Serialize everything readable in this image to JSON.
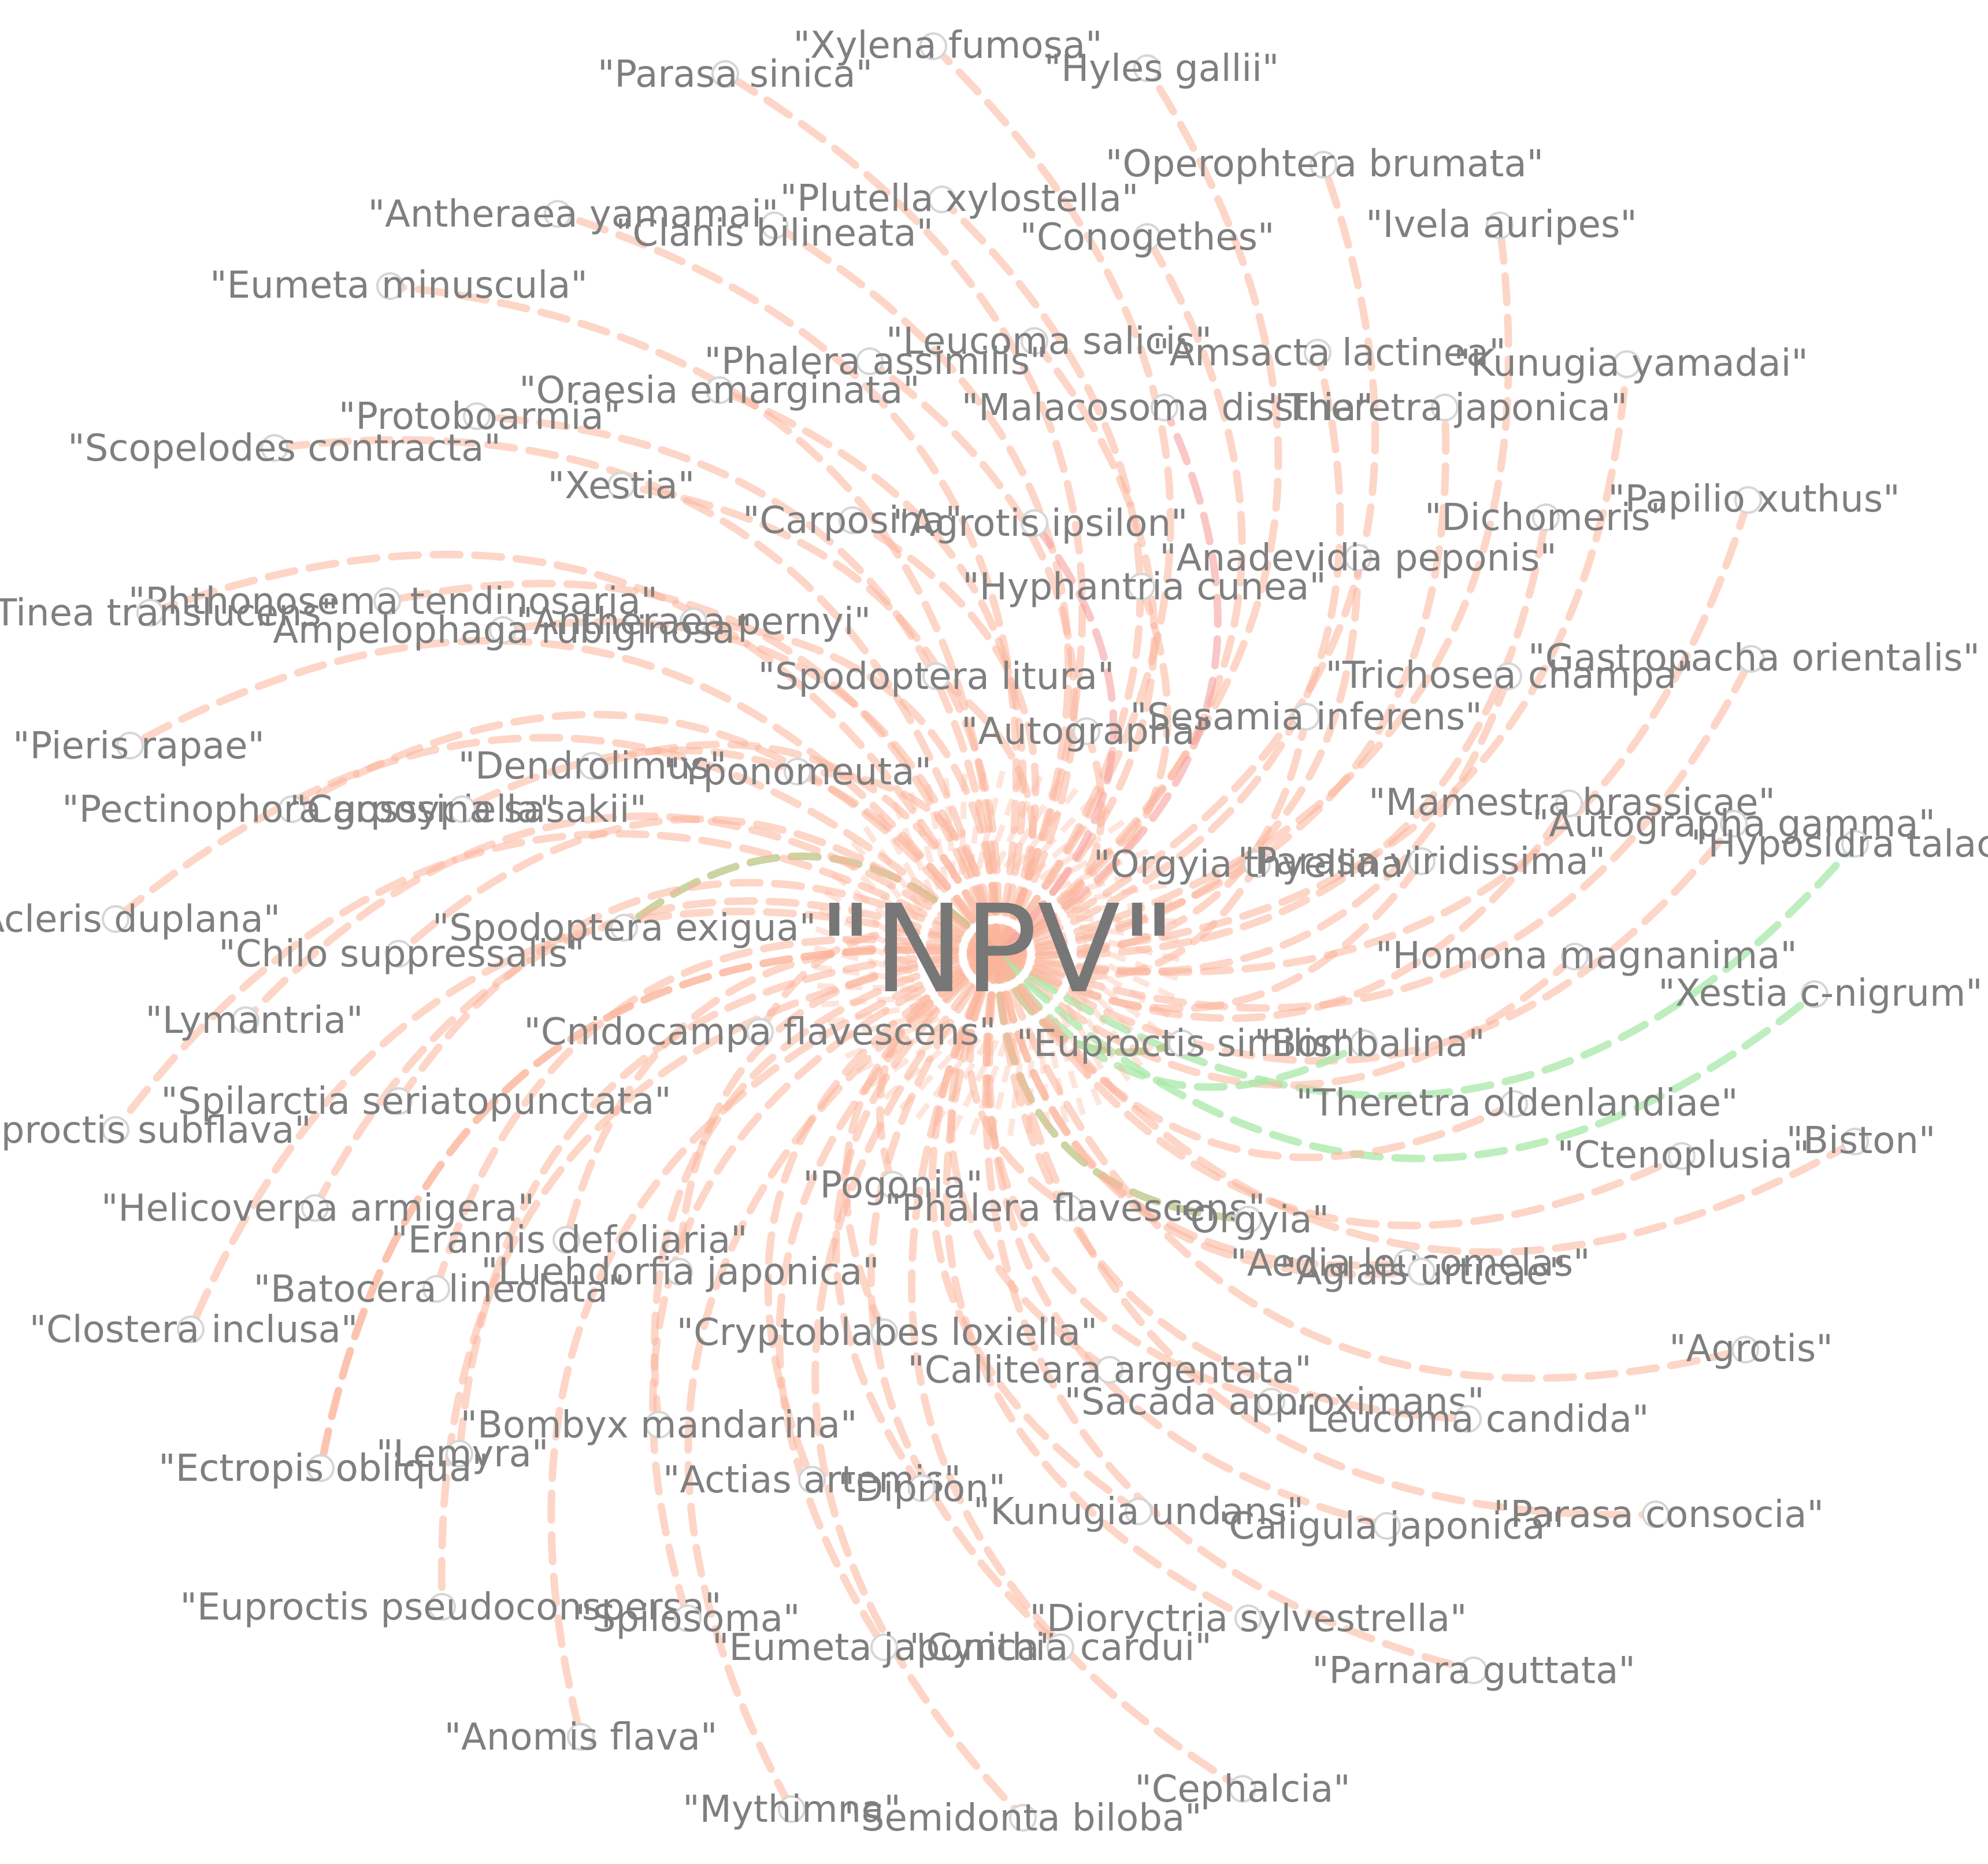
{
  "center": {
    "label": "\"NPV\""
  },
  "colors": {
    "edge_main": "#fcb49a",
    "edge_highlight": "#f7a0a0",
    "edge_alt": "#a8e8a8",
    "edge_mixed": "#b8c07a",
    "node_stroke": "#d6d6d6",
    "label": "#7f7f7f"
  },
  "nodes": [
    {
      "label": "\"Xylena fumosa\""
    },
    {
      "label": "\"Parasa sinica\""
    },
    {
      "label": "\"Hyles gallii\""
    },
    {
      "label": "\"Operophtera brumata\""
    },
    {
      "label": "\"Plutella xylostella\""
    },
    {
      "label": "\"Antheraea yamamai\""
    },
    {
      "label": "\"Clanis bilineata\""
    },
    {
      "label": "\"Conogethes\""
    },
    {
      "label": "\"Ivela auripes\""
    },
    {
      "label": "\"Eumeta minuscula\""
    },
    {
      "label": "\"Leucoma salicis\""
    },
    {
      "label": "\"Amsacta lactinea\""
    },
    {
      "label": "\"Phalera assimilis\""
    },
    {
      "label": "\"Kunugia yamadai\""
    },
    {
      "label": "\"Oraesia emarginata\""
    },
    {
      "label": "\"Malacosoma disstria\""
    },
    {
      "label": "\"Theretra japonica\""
    },
    {
      "label": "\"Protoboarmia\""
    },
    {
      "label": "\"Scopelodes contracta\""
    },
    {
      "label": "\"Papilio xuthus\""
    },
    {
      "label": "\"Xestia\""
    },
    {
      "label": "\"Dichomeris\""
    },
    {
      "label": "\"Carposina\""
    },
    {
      "label": "\"Agrotis ipsilon\""
    },
    {
      "label": "\"Anadevidia peponis\""
    },
    {
      "label": "\"Hyphantria cunea\""
    },
    {
      "label": "\"Phthonosema tendinosaria\""
    },
    {
      "label": "\"Tinea translucens\""
    },
    {
      "label": "\"Antheraea pernyi\""
    },
    {
      "label": "\"Ampelophaga rubiginosa\""
    },
    {
      "label": "\"Gastropacha orientalis\""
    },
    {
      "label": "\"Trichosea champa\""
    },
    {
      "label": "\"Spodoptera litura\""
    },
    {
      "label": "\"Sesamia inferens\""
    },
    {
      "label": "\"Autographa\""
    },
    {
      "label": "\"Pieris rapae\""
    },
    {
      "label": "\"Dendrolimus\""
    },
    {
      "label": "\"Yponomeuta\""
    },
    {
      "label": "\"Mamestra brassicae\""
    },
    {
      "label": "\"Pectinophora gossypiella\""
    },
    {
      "label": "\"Carposina sasakii\""
    },
    {
      "label": "\"Autographa gamma\""
    },
    {
      "label": "\"Hyposidra talaca\""
    },
    {
      "label": "\"Orgyia thyellina\""
    },
    {
      "label": "\"Parasa viridissima\""
    },
    {
      "label": "\"Acleris duplana\""
    },
    {
      "label": "\"Spodoptera exigua\""
    },
    {
      "label": "\"Chilo suppressalis\""
    },
    {
      "label": "\"Homona magnanima\""
    },
    {
      "label": "\"Xestia c-nigrum\""
    },
    {
      "label": "\"Lymantria\""
    },
    {
      "label": "\"Cnidocampa flavescens\""
    },
    {
      "label": "\"Euproctis similis\""
    },
    {
      "label": "\"Bombalina\""
    },
    {
      "label": "\"Spilarctia seriatopunctata\""
    },
    {
      "label": "\"Ectropis obliqua\""
    },
    {
      "label": "\"Theretra oldenlandiae\""
    },
    {
      "label": "\"Euproctis subflava\""
    },
    {
      "label": "\"Ctenoplusia\""
    },
    {
      "label": "\"Biston\""
    },
    {
      "label": "\"Pogonia\""
    },
    {
      "label": "\"Phalera flavescens\""
    },
    {
      "label": "\"Orgyia\""
    },
    {
      "label": "\"Helicoverpa armigera\""
    },
    {
      "label": "\"Erannis defoliaria\""
    },
    {
      "label": "\"Aedia leucomelas\""
    },
    {
      "label": "\"Aglais urticae\""
    },
    {
      "label": "\"Luehdorfia japonica\""
    },
    {
      "label": "\"Batocera lineolata\""
    },
    {
      "label": "\"Clostera inclusa\""
    },
    {
      "label": "\"Cryptoblabes loxiella\""
    },
    {
      "label": "\"Agrotis\""
    },
    {
      "label": "\"Calliteara argentata\""
    },
    {
      "label": "\"Sacada approximans\""
    },
    {
      "label": "\"Leucoma candida\""
    },
    {
      "label": "\"Bombyx mandarina\""
    },
    {
      "label": "\"Lemyra\""
    },
    {
      "label": "\"Ectropis obliqua\""
    },
    {
      "label": "\"Actias artemis\""
    },
    {
      "label": "\"Diprion\""
    },
    {
      "label": "\"Kunugia undans\""
    },
    {
      "label": "\"Caligula japonica\""
    },
    {
      "label": "\"Parasa consocia\""
    },
    {
      "label": "\"Euproctis pseudoconspersa\""
    },
    {
      "label": "\"Spilosoma\""
    },
    {
      "label": "\"Eumeta japonica\""
    },
    {
      "label": "\"Cynthia cardui\""
    },
    {
      "label": "\"Dioryctria sylvestrella\""
    },
    {
      "label": "\"Parnara guttata\""
    },
    {
      "label": "\"Anomis flava\""
    },
    {
      "label": "\"Cephalcia\""
    },
    {
      "label": "\"Mythimna\""
    },
    {
      "label": "\"Semidonta biloba\""
    }
  ]
}
